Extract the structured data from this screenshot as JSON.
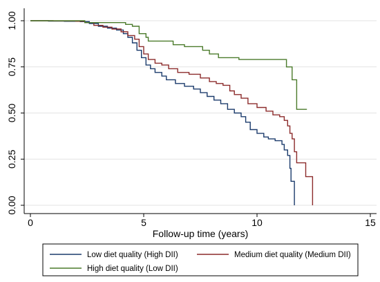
{
  "chart_data": {
    "type": "line",
    "subtype": "kaplan-meier step",
    "xlabel": "Follow-up time (years)",
    "ylabel": "",
    "xlim": [
      0,
      15
    ],
    "ylim": [
      0,
      1
    ],
    "xticks": [
      0,
      5,
      10,
      15
    ],
    "yticks": [
      "0.00",
      "0.25",
      "0.50",
      "0.75",
      "1.00"
    ],
    "grid": "horizontal",
    "legend_position": "bottom",
    "series": [
      {
        "name": "Low diet quality (High DII)",
        "color": "#1a3a6b",
        "points": [
          [
            0,
            1.0
          ],
          [
            0.8,
            0.998
          ],
          [
            1.5,
            0.997
          ],
          [
            2.2,
            0.995
          ],
          [
            2.6,
            0.985
          ],
          [
            3.0,
            0.97
          ],
          [
            3.4,
            0.96
          ],
          [
            3.8,
            0.95
          ],
          [
            4.1,
            0.93
          ],
          [
            4.3,
            0.91
          ],
          [
            4.5,
            0.88
          ],
          [
            4.7,
            0.84
          ],
          [
            4.9,
            0.8
          ],
          [
            5.1,
            0.76
          ],
          [
            5.3,
            0.74
          ],
          [
            5.5,
            0.72
          ],
          [
            5.8,
            0.7
          ],
          [
            6.0,
            0.68
          ],
          [
            6.4,
            0.66
          ],
          [
            6.8,
            0.645
          ],
          [
            7.2,
            0.63
          ],
          [
            7.5,
            0.61
          ],
          [
            7.8,
            0.59
          ],
          [
            8.1,
            0.57
          ],
          [
            8.4,
            0.55
          ],
          [
            8.7,
            0.52
          ],
          [
            9.0,
            0.5
          ],
          [
            9.3,
            0.48
          ],
          [
            9.5,
            0.45
          ],
          [
            9.7,
            0.41
          ],
          [
            10.0,
            0.39
          ],
          [
            10.3,
            0.37
          ],
          [
            10.5,
            0.36
          ],
          [
            10.8,
            0.35
          ],
          [
            11.1,
            0.33
          ],
          [
            11.2,
            0.3
          ],
          [
            11.35,
            0.27
          ],
          [
            11.45,
            0.2
          ],
          [
            11.5,
            0.13
          ],
          [
            11.65,
            0.13
          ],
          [
            11.65,
            0.0
          ]
        ]
      },
      {
        "name": "Medium diet quality (Medium DII)",
        "color": "#8b2a2a",
        "points": [
          [
            0,
            1.0
          ],
          [
            1.0,
            0.999
          ],
          [
            2.0,
            0.997
          ],
          [
            2.4,
            0.99
          ],
          [
            2.8,
            0.975
          ],
          [
            3.2,
            0.965
          ],
          [
            3.6,
            0.955
          ],
          [
            4.0,
            0.94
          ],
          [
            4.3,
            0.92
          ],
          [
            4.6,
            0.9
          ],
          [
            4.8,
            0.86
          ],
          [
            5.0,
            0.82
          ],
          [
            5.2,
            0.79
          ],
          [
            5.5,
            0.77
          ],
          [
            5.8,
            0.76
          ],
          [
            6.1,
            0.74
          ],
          [
            6.5,
            0.72
          ],
          [
            7.0,
            0.71
          ],
          [
            7.5,
            0.69
          ],
          [
            7.9,
            0.67
          ],
          [
            8.2,
            0.66
          ],
          [
            8.5,
            0.65
          ],
          [
            8.8,
            0.62
          ],
          [
            9.0,
            0.6
          ],
          [
            9.3,
            0.58
          ],
          [
            9.6,
            0.55
          ],
          [
            10.0,
            0.53
          ],
          [
            10.4,
            0.51
          ],
          [
            10.7,
            0.49
          ],
          [
            11.0,
            0.48
          ],
          [
            11.2,
            0.46
          ],
          [
            11.35,
            0.43
          ],
          [
            11.45,
            0.39
          ],
          [
            11.55,
            0.36
          ],
          [
            11.65,
            0.29
          ],
          [
            11.75,
            0.23
          ],
          [
            12.15,
            0.23
          ],
          [
            12.15,
            0.155
          ],
          [
            12.45,
            0.155
          ],
          [
            12.45,
            0.0
          ]
        ]
      },
      {
        "name": "High diet quality (Low DII)",
        "color": "#4a7a2a",
        "points": [
          [
            0,
            1.0
          ],
          [
            2.0,
            1.0
          ],
          [
            2.4,
            0.99
          ],
          [
            4.0,
            0.99
          ],
          [
            4.2,
            0.98
          ],
          [
            4.5,
            0.97
          ],
          [
            4.8,
            0.93
          ],
          [
            5.1,
            0.91
          ],
          [
            5.2,
            0.89
          ],
          [
            6.3,
            0.87
          ],
          [
            6.8,
            0.86
          ],
          [
            7.6,
            0.84
          ],
          [
            7.9,
            0.82
          ],
          [
            8.3,
            0.8
          ],
          [
            9.2,
            0.79
          ],
          [
            11.3,
            0.785
          ],
          [
            11.3,
            0.75
          ],
          [
            11.55,
            0.68
          ],
          [
            11.75,
            0.68
          ],
          [
            11.75,
            0.52
          ],
          [
            12.2,
            0.52
          ]
        ]
      }
    ]
  }
}
